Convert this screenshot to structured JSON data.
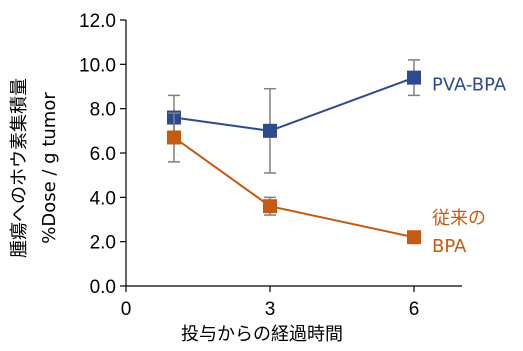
{
  "chart_data": {
    "type": "line",
    "xlabel": "投与からの経過時間",
    "ylabel": [
      "腫瘍へのホウ素集積量",
      "%Dose / g tumor"
    ],
    "xlim": [
      0,
      7
    ],
    "ylim": [
      0,
      12
    ],
    "x_ticks": [
      "0",
      "3",
      "6"
    ],
    "y_ticks": [
      "0.0",
      "2.0",
      "4.0",
      "6.0",
      "8.0",
      "10.0",
      "12.0"
    ],
    "grid": false,
    "series": [
      {
        "name": "PVA-BPA",
        "color": "#2E4A8F",
        "x": [
          1,
          3,
          6
        ],
        "y": [
          7.6,
          7.0,
          9.4
        ],
        "err": [
          1.0,
          1.9,
          0.8
        ]
      },
      {
        "name": "従来のBPA",
        "name_lines": [
          "従来の",
          "BPA"
        ],
        "color": "#C55A11",
        "x": [
          1,
          3,
          6
        ],
        "y": [
          6.7,
          3.6,
          2.2
        ],
        "err": [
          1.1,
          0.4,
          0.15
        ]
      }
    ]
  }
}
